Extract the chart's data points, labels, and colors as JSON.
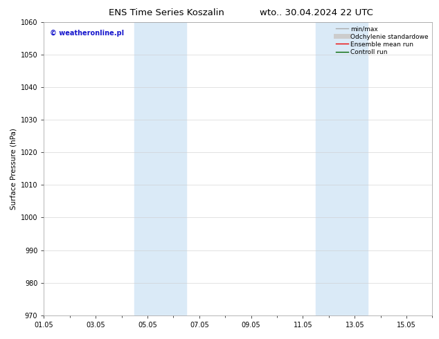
{
  "title_left": "ENS Time Series Koszalin",
  "title_right": "wto.. 30.04.2024 22 UTC",
  "ylabel": "Surface Pressure (hPa)",
  "ylim": [
    970,
    1060
  ],
  "yticks": [
    970,
    980,
    990,
    1000,
    1010,
    1020,
    1030,
    1040,
    1050,
    1060
  ],
  "xlim_start": 0,
  "xlim_end": 15,
  "xtick_positions": [
    0,
    2,
    4,
    6,
    8,
    10,
    12,
    14
  ],
  "xtick_labels": [
    "01.05",
    "03.05",
    "05.05",
    "07.05",
    "09.05",
    "11.05",
    "13.05",
    "15.05"
  ],
  "shaded_bands": [
    {
      "x_start": 3.5,
      "x_end": 5.5
    },
    {
      "x_start": 10.5,
      "x_end": 12.5
    }
  ],
  "shade_color": "#daeaf7",
  "watermark_text": "© weatheronline.pl",
  "watermark_color": "#1515cc",
  "legend_items": [
    {
      "label": "min/max",
      "color": "#aaaaaa",
      "linestyle": "-",
      "linewidth": 1.0
    },
    {
      "label": "Odchylenie standardowe",
      "color": "#cccccc",
      "linestyle": "-",
      "linewidth": 5
    },
    {
      "label": "Ensemble mean run",
      "color": "#ee0000",
      "linestyle": "-",
      "linewidth": 1.0
    },
    {
      "label": "Controll run",
      "color": "#006600",
      "linestyle": "-",
      "linewidth": 1.0
    }
  ],
  "background_color": "#ffffff",
  "spine_color": "#999999",
  "title_fontsize": 9.5,
  "tick_fontsize": 7,
  "ylabel_fontsize": 7.5,
  "watermark_fontsize": 7,
  "legend_fontsize": 6.5
}
